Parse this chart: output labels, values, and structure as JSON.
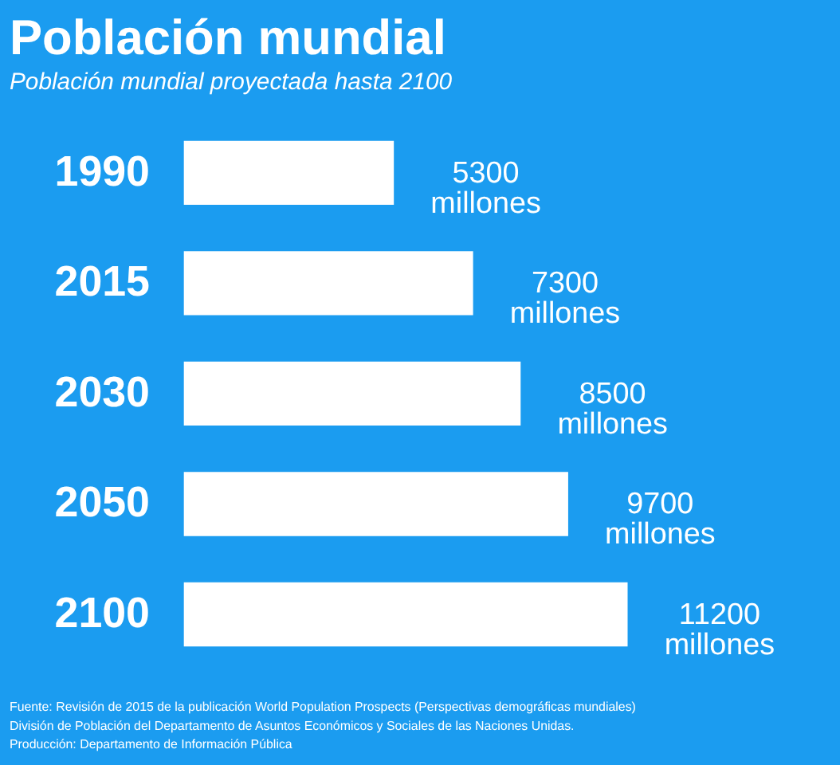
{
  "chart_data": {
    "type": "bar",
    "orientation": "horizontal",
    "title": "Población mundial",
    "subtitle": "Población mundial proyectada hasta 2100",
    "categories": [
      "1990",
      "2015",
      "2030",
      "2050",
      "2100"
    ],
    "values": [
      5300,
      7300,
      8500,
      9700,
      11200
    ],
    "value_labels": [
      "5300\nmillones",
      "7300\nmillones",
      "8500\nmillones",
      "9700\nmillones",
      "11200\nmillones"
    ],
    "color": "#ffffff",
    "tick_labels": "y",
    "annotations": [
      "Fuente: Revisión de 2015 de la publicación World Population Prospects (Perspectivas demográficas mundiales)",
      "División de Población del Departamento de Asuntos Económicos y Sociales de las Naciones Unidas.",
      "Producción: Departamento de Información Pública"
    ]
  }
}
